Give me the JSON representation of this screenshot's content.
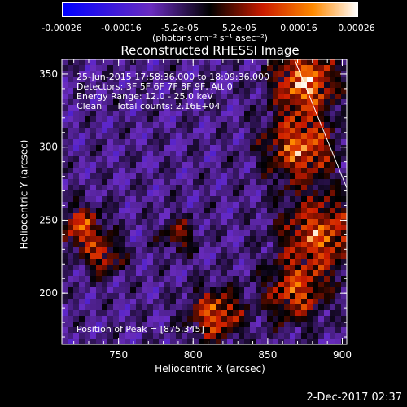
{
  "chart_data": {
    "type": "heatmap",
    "title": "Reconstructed RHESSI Image",
    "xlabel": "Heliocentric X (arcsec)",
    "ylabel": "Heliocentric Y (arcsec)",
    "xlim": [
      712,
      903
    ],
    "ylim": [
      165,
      360
    ],
    "x_ticks": [
      750,
      800,
      850,
      900
    ],
    "y_ticks": [
      200,
      250,
      300,
      350
    ],
    "colorbar": {
      "range": [
        -0.00026,
        0.00026
      ],
      "tick_labels": [
        "-0.00026",
        "-0.00016",
        "-5.2e-05",
        "5.2e-05",
        "0.00016",
        "0.00026"
      ],
      "unit_label": "(photons cm⁻² s⁻¹ asec⁻²)",
      "colors": [
        "#0000ff",
        "#6a2cc0",
        "#000000",
        "#cc1b00",
        "#ff8a00",
        "#ffffff"
      ]
    },
    "annotations": {
      "time": "25-Jun-2015 17:58:36.000 to 18:09:36.000",
      "detectors": "Detectors: 3F 5F 6F 7F 8F 9F, Att 0",
      "energy": "Energy Range: 12.0 - 25.0 keV",
      "clean": "Clean     Total counts: 2.16E+04",
      "peak": "Position of Peak = [875,345]"
    },
    "peak": [
      875,
      345
    ]
  },
  "footer": {
    "timestamp": "2-Dec-2017 02:37"
  }
}
